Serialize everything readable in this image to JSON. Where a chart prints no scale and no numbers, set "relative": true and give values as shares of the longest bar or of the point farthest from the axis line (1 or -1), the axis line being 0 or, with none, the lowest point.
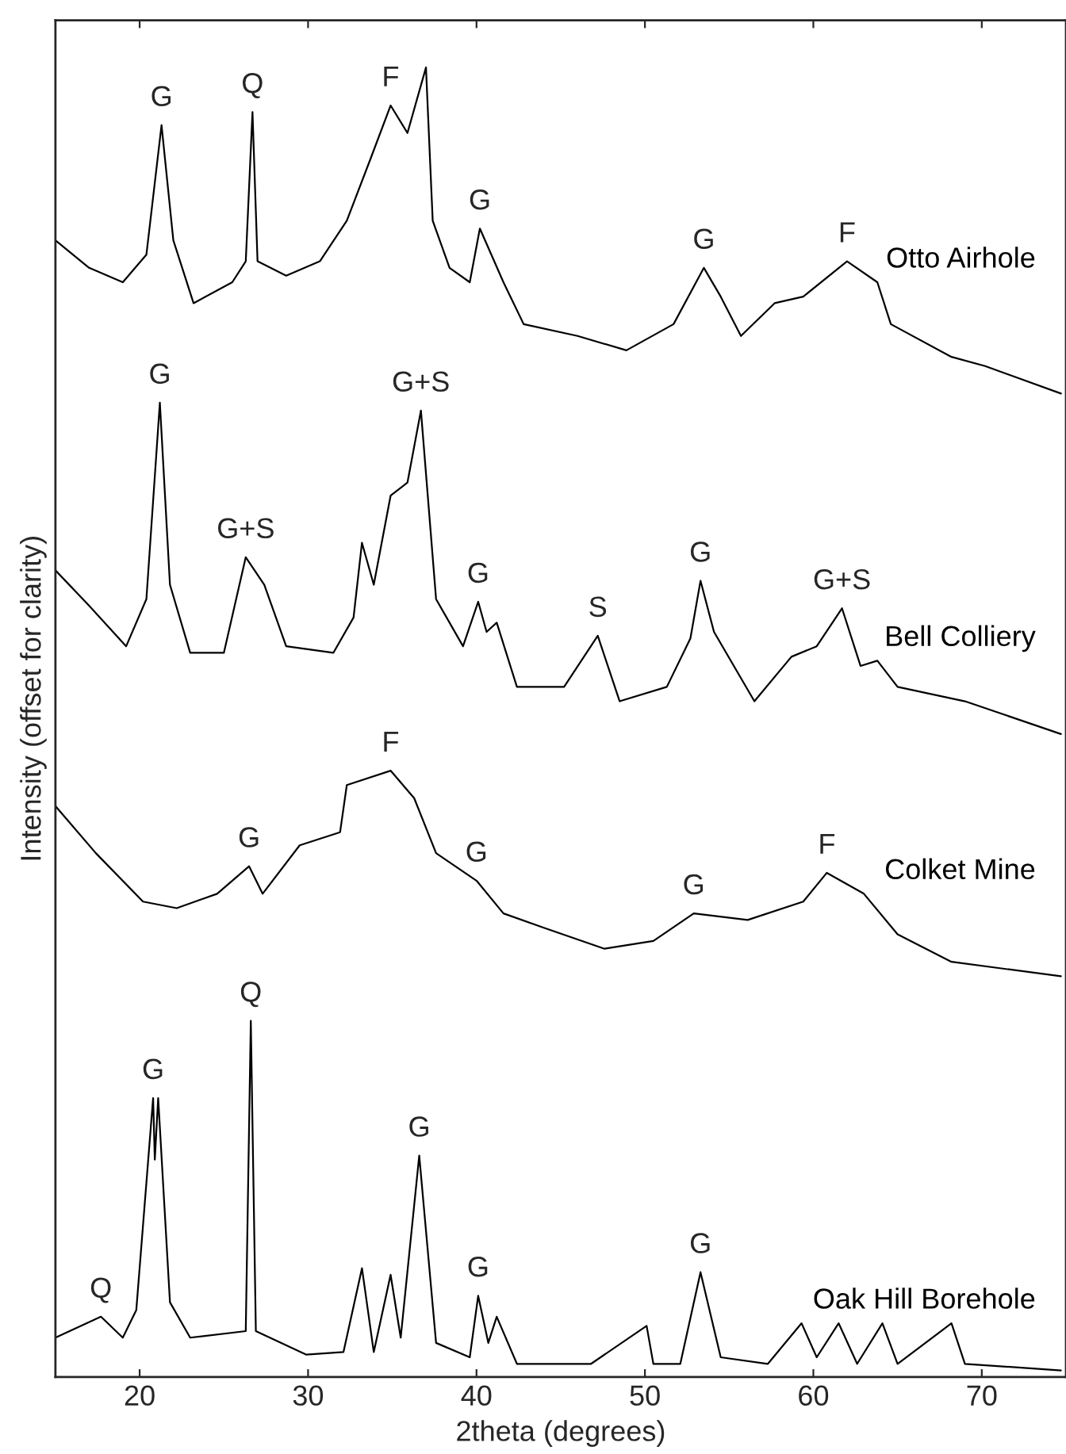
{
  "chart_data": {
    "type": "line",
    "relative": true,
    "xlabel": "2theta (degrees)",
    "ylabel": "Intensity (offset for clarity)",
    "xlim": [
      15,
      75
    ],
    "xticks": [
      20,
      30,
      40,
      50,
      60,
      70
    ],
    "grid": false,
    "legend": false,
    "marker": "none",
    "line_style": "solid",
    "series": [
      {
        "name": "Otto Airhole",
        "color": "#000000",
        "x": [
          15,
          17,
          19,
          20.4,
          21.3,
          22,
          23.2,
          25.5,
          26.3,
          26.7,
          27,
          28.7,
          30.7,
          32.3,
          33.7,
          34.9,
          35.9,
          37,
          37.4,
          38.4,
          39.6,
          40.2,
          41.6,
          42.8,
          46,
          48.9,
          51.7,
          53.5,
          54.5,
          55.7,
          57.7,
          59.4,
          62,
          63.8,
          64.6,
          68.2,
          70.2,
          74.7
        ],
        "values": [
          0.868,
          0.847,
          0.836,
          0.857,
          0.956,
          0.868,
          0.82,
          0.836,
          0.852,
          0.966,
          0.852,
          0.841,
          0.852,
          0.883,
          0.93,
          0.971,
          0.95,
          1.0,
          0.883,
          0.847,
          0.836,
          0.877,
          0.836,
          0.804,
          0.795,
          0.784,
          0.804,
          0.847,
          0.825,
          0.795,
          0.82,
          0.825,
          0.852,
          0.836,
          0.804,
          0.779,
          0.772,
          0.751
        ]
      },
      {
        "name": "Bell Colliery",
        "color": "#000000",
        "x": [
          15,
          17,
          19.2,
          20.4,
          21.2,
          21.8,
          23,
          25,
          26.3,
          27.4,
          28.7,
          31.5,
          32.7,
          33.2,
          33.9,
          34.9,
          35.9,
          36.7,
          37.6,
          39.2,
          40.1,
          40.6,
          41.2,
          42.4,
          45.2,
          47.2,
          48.5,
          51.3,
          52.7,
          53.3,
          54.1,
          56.5,
          58.7,
          60.2,
          61.7,
          62.8,
          63.8,
          65,
          69,
          74.7
        ],
        "values": [
          0.616,
          0.589,
          0.558,
          0.594,
          0.744,
          0.605,
          0.553,
          0.553,
          0.626,
          0.605,
          0.558,
          0.553,
          0.58,
          0.637,
          0.605,
          0.673,
          0.683,
          0.738,
          0.594,
          0.558,
          0.592,
          0.569,
          0.576,
          0.527,
          0.527,
          0.566,
          0.516,
          0.527,
          0.564,
          0.608,
          0.569,
          0.516,
          0.55,
          0.558,
          0.587,
          0.543,
          0.547,
          0.527,
          0.516,
          0.491
        ]
      },
      {
        "name": "Colket Mine",
        "color": "#000000",
        "x": [
          15,
          17.4,
          20.2,
          22.2,
          24.6,
          26.5,
          27.3,
          29.5,
          31.9,
          32.3,
          34.9,
          36.3,
          37.6,
          40,
          41.6,
          44,
          47.6,
          50.5,
          52.9,
          56.1,
          59.4,
          60.8,
          63,
          65,
          68.2,
          74.7
        ],
        "values": [
          0.436,
          0.4,
          0.363,
          0.358,
          0.369,
          0.39,
          0.369,
          0.406,
          0.416,
          0.452,
          0.463,
          0.442,
          0.4,
          0.379,
          0.354,
          0.343,
          0.327,
          0.333,
          0.354,
          0.349,
          0.363,
          0.385,
          0.369,
          0.338,
          0.317,
          0.306
        ]
      },
      {
        "name": "Oak Hill Borehole",
        "color": "#000000",
        "x": [
          15,
          17.7,
          19,
          19.8,
          20.8,
          20.9,
          21.1,
          21.8,
          23,
          26.3,
          26.6,
          26.9,
          29.9,
          32.1,
          33.2,
          33.9,
          34.9,
          35.5,
          36.6,
          37.6,
          39.6,
          40.1,
          40.7,
          41.2,
          42.4,
          46.8,
          50.1,
          50.5,
          52.1,
          53.3,
          54.5,
          57.3,
          59.3,
          60.2,
          61.5,
          62.6,
          64.1,
          65,
          68.2,
          69,
          74.7
        ],
        "values": [
          0.03,
          0.046,
          0.03,
          0.051,
          0.213,
          0.166,
          0.213,
          0.057,
          0.03,
          0.035,
          0.272,
          0.035,
          0.017,
          0.019,
          0.083,
          0.019,
          0.078,
          0.03,
          0.169,
          0.026,
          0.015,
          0.062,
          0.026,
          0.046,
          0.01,
          0.01,
          0.039,
          0.01,
          0.01,
          0.08,
          0.015,
          0.01,
          0.041,
          0.015,
          0.041,
          0.01,
          0.041,
          0.01,
          0.041,
          0.01,
          0.005
        ]
      }
    ],
    "annotations": [
      {
        "text": "G",
        "x": 21.3,
        "y": 0.956
      },
      {
        "text": "Q",
        "x": 26.7,
        "y": 0.966
      },
      {
        "text": "F",
        "x": 34.9,
        "y": 0.971
      },
      {
        "text": "G",
        "x": 40.2,
        "y": 0.877
      },
      {
        "text": "G",
        "x": 53.5,
        "y": 0.847
      },
      {
        "text": "F",
        "x": 62,
        "y": 0.852
      },
      {
        "text": "G",
        "x": 21.2,
        "y": 0.744
      },
      {
        "text": "G+S",
        "x": 36.7,
        "y": 0.738
      },
      {
        "text": "G+S",
        "x": 26.3,
        "y": 0.626
      },
      {
        "text": "G",
        "x": 40.1,
        "y": 0.592
      },
      {
        "text": "S",
        "x": 47.2,
        "y": 0.566
      },
      {
        "text": "G",
        "x": 53.3,
        "y": 0.608
      },
      {
        "text": "G+S",
        "x": 61.7,
        "y": 0.587
      },
      {
        "text": "F",
        "x": 34.9,
        "y": 0.463
      },
      {
        "text": "G",
        "x": 26.5,
        "y": 0.39
      },
      {
        "text": "G",
        "x": 40,
        "y": 0.379
      },
      {
        "text": "G",
        "x": 52.9,
        "y": 0.354
      },
      {
        "text": "F",
        "x": 60.8,
        "y": 0.385
      },
      {
        "text": "Q",
        "x": 26.6,
        "y": 0.272
      },
      {
        "text": "G",
        "x": 20.8,
        "y": 0.213
      },
      {
        "text": "G",
        "x": 36.6,
        "y": 0.169
      },
      {
        "text": "G",
        "x": 40.1,
        "y": 0.062
      },
      {
        "text": "G",
        "x": 53.3,
        "y": 0.08
      },
      {
        "text": "Q",
        "x": 17.7,
        "y": 0.046
      }
    ]
  }
}
